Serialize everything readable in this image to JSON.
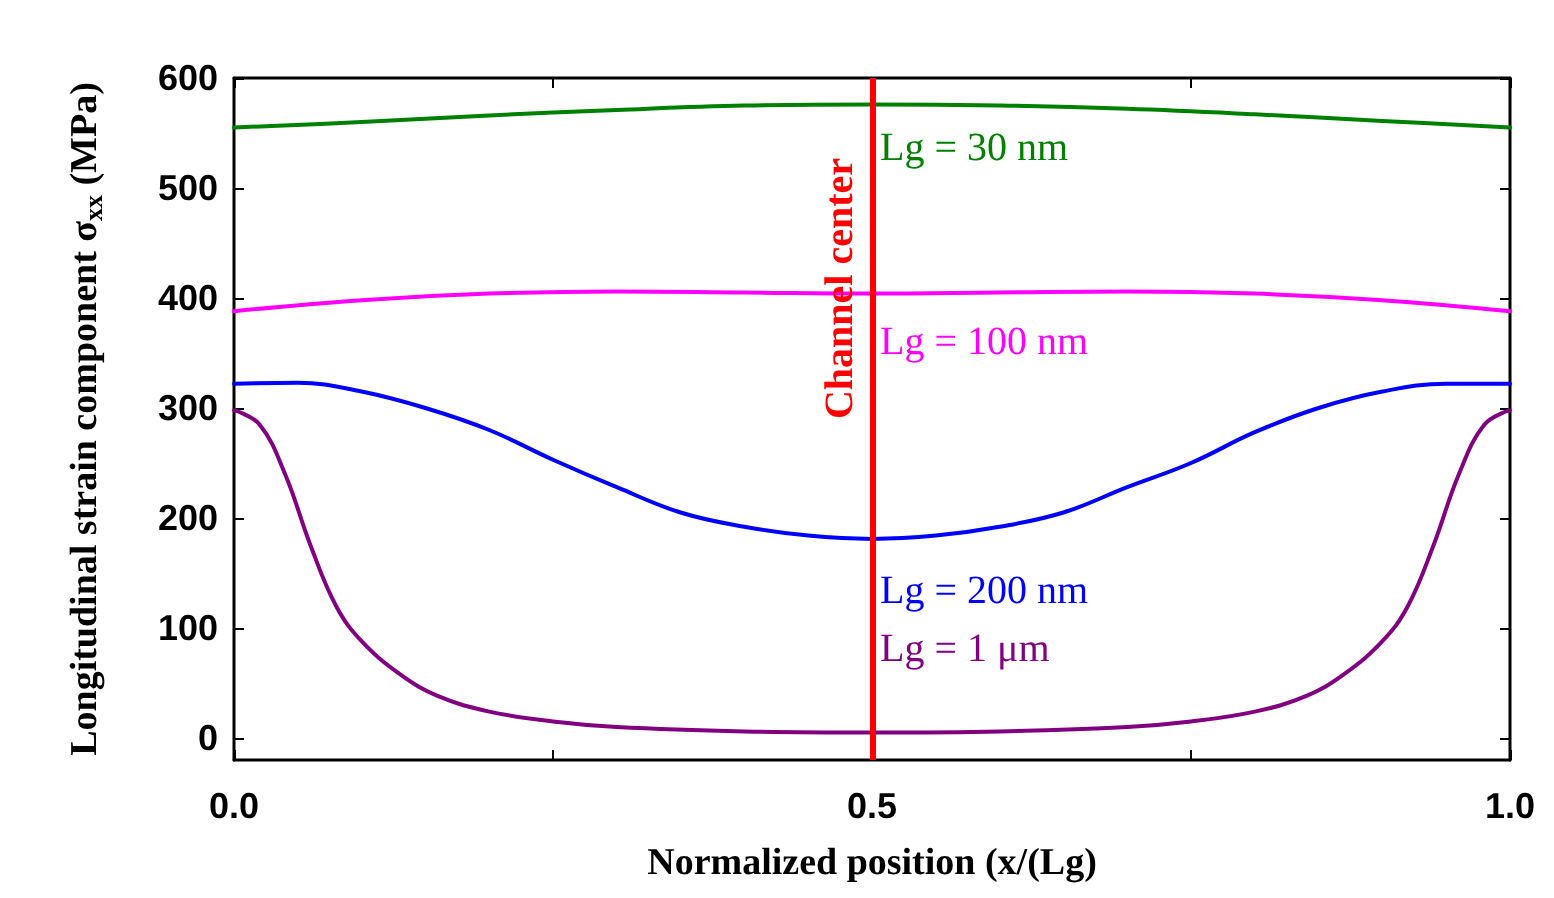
{
  "chart_data": {
    "type": "line",
    "xlabel": "Normalized position (x/(Lg)",
    "ylabel": "Longitudinal strain component σ$_{xx}$ (MPa)",
    "xlim": [
      0,
      1
    ],
    "xticks": [
      {
        "value": 0,
        "label": "0.0"
      },
      {
        "value": 0.25,
        "label": null
      },
      {
        "value": 0.5,
        "label": "0.5"
      },
      {
        "value": 0.75,
        "label": null
      },
      {
        "value": 1,
        "label": "1.0"
      }
    ],
    "ylim": [
      -20,
      600
    ],
    "yticks": [
      0,
      100,
      200,
      300,
      400,
      500,
      600
    ],
    "grid": false,
    "legend": false,
    "marker": "none",
    "line_style": "solid",
    "series": [
      {
        "name": "Lg = 30 nm",
        "color": "#008000",
        "x": [
          0,
          0.1,
          0.2,
          0.3,
          0.4,
          0.5,
          0.6,
          0.7,
          0.8,
          0.9,
          1
        ],
        "values": [
          555,
          560,
          566,
          571,
          575,
          576,
          575,
          572,
          567,
          561,
          555
        ]
      },
      {
        "name": "Lg = 100 nm",
        "color": "#ff00ff",
        "x": [
          0,
          0.1,
          0.2,
          0.3,
          0.4,
          0.5,
          0.6,
          0.7,
          0.8,
          0.9,
          1
        ],
        "values": [
          388,
          398,
          404,
          406,
          405,
          404,
          405,
          406,
          404,
          398,
          388
        ]
      },
      {
        "name": "Lg = 200 nm",
        "color": "#0000ff",
        "x": [
          0,
          0.05,
          0.1,
          0.15,
          0.2,
          0.25,
          0.3,
          0.35,
          0.4,
          0.45,
          0.5,
          0.55,
          0.6,
          0.65,
          0.7,
          0.75,
          0.8,
          0.85,
          0.9,
          0.95,
          1
        ],
        "values": [
          322,
          323,
          315,
          300,
          280,
          253,
          228,
          205,
          192,
          184,
          181,
          184,
          192,
          205,
          228,
          250,
          278,
          300,
          315,
          322,
          322
        ]
      },
      {
        "name": "Lg = 1 μm",
        "color": "#800080",
        "x": [
          0,
          0.02,
          0.04,
          0.06,
          0.08,
          0.1,
          0.13,
          0.16,
          0.2,
          0.25,
          0.3,
          0.4,
          0.5,
          0.6,
          0.7,
          0.75,
          0.8,
          0.84,
          0.87,
          0.9,
          0.92,
          0.94,
          0.96,
          0.98,
          1
        ],
        "values": [
          298,
          285,
          240,
          175,
          120,
          88,
          58,
          38,
          24,
          15,
          10,
          6,
          5,
          6,
          10,
          15,
          24,
          38,
          58,
          88,
          120,
          175,
          240,
          285,
          298
        ]
      }
    ],
    "ref_lines": [
      {
        "axis": "x",
        "value": 0.5,
        "label": "Channel center",
        "color": "#ff0000"
      }
    ]
  }
}
